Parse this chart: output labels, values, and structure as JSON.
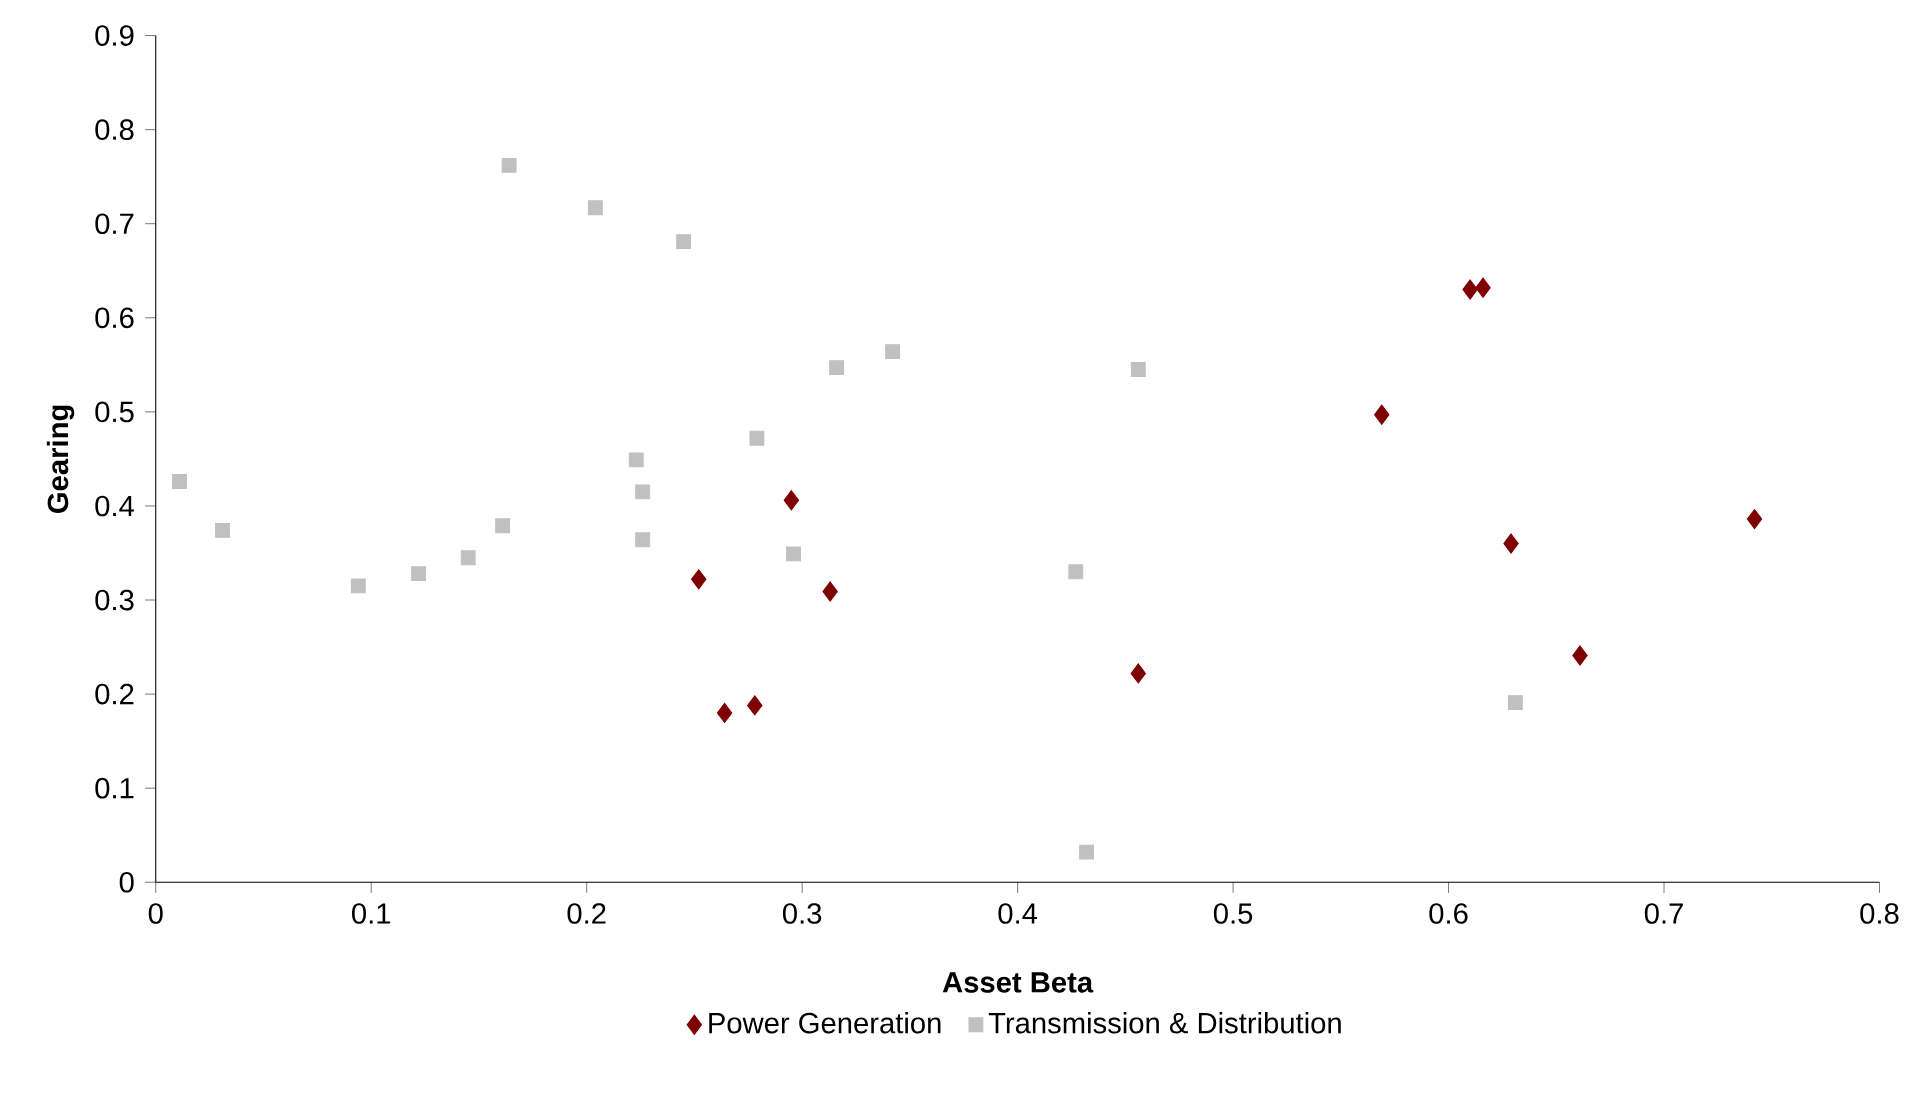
{
  "chart_data": {
    "type": "scatter",
    "xlabel": "Asset Beta",
    "ylabel": "Gearing",
    "xlim": [
      0,
      0.8
    ],
    "xticks": [
      0,
      0.1,
      0.2,
      0.3,
      0.4,
      0.5,
      0.6,
      0.7,
      0.8
    ],
    "ylim": [
      0,
      0.9
    ],
    "yticks": [
      0,
      0.1,
      0.2,
      0.3,
      0.4,
      0.5,
      0.6,
      0.7,
      0.8,
      0.9
    ],
    "grid": false,
    "legend": "bottom",
    "series": [
      {
        "name": "Power Generation",
        "color": "#7f0000",
        "marker": "diamond",
        "x": [
          0.252,
          0.264,
          0.278,
          0.295,
          0.313,
          0.456,
          0.569,
          0.61,
          0.616,
          0.629,
          0.661,
          0.742
        ],
        "values": [
          0.322,
          0.18,
          0.188,
          0.406,
          0.309,
          0.222,
          0.497,
          0.63,
          0.632,
          0.36,
          0.241,
          0.386
        ]
      },
      {
        "name": "Transmission & Distribution",
        "color": "#c0c0c0",
        "marker": "square",
        "x": [
          0.011,
          0.031,
          0.094,
          0.122,
          0.145,
          0.161,
          0.164,
          0.204,
          0.223,
          0.226,
          0.226,
          0.245,
          0.279,
          0.296,
          0.316,
          0.342,
          0.427,
          0.432,
          0.456,
          0.631
        ],
        "values": [
          0.426,
          0.374,
          0.315,
          0.328,
          0.345,
          0.379,
          0.762,
          0.717,
          0.449,
          0.415,
          0.364,
          0.681,
          0.472,
          0.349,
          0.547,
          0.564,
          0.33,
          0.032,
          0.545,
          0.191
        ]
      }
    ]
  }
}
